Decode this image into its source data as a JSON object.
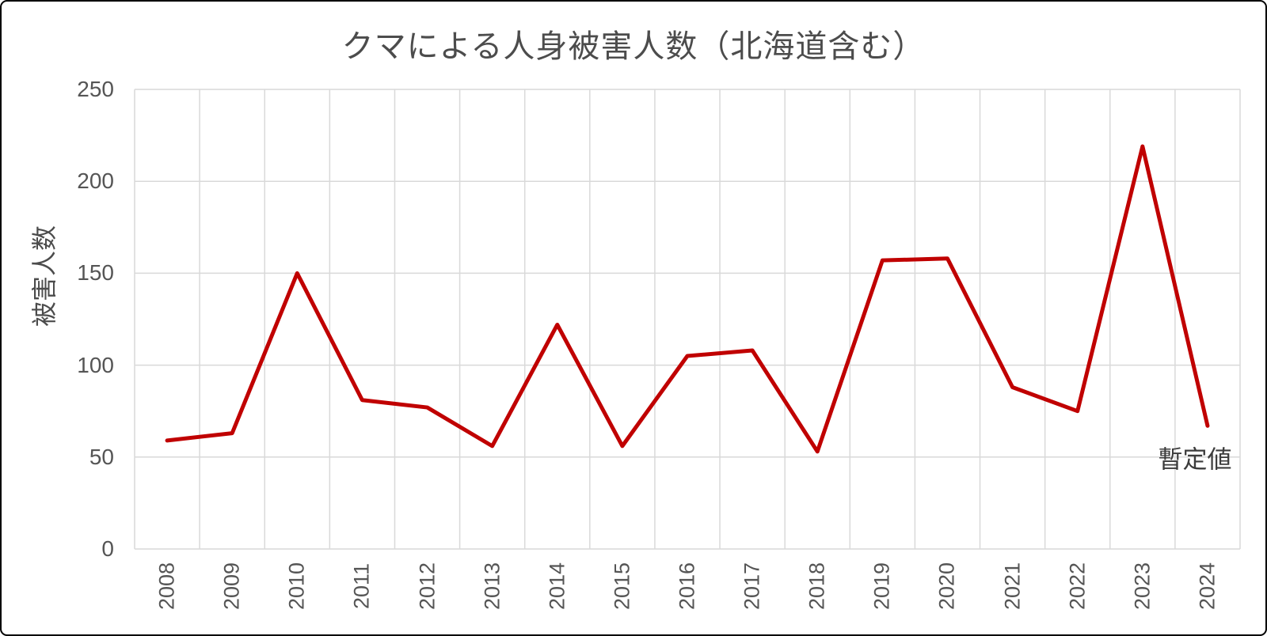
{
  "chart_data": {
    "type": "line",
    "title": "クマによる人身被害人数（北海道含む）",
    "ylabel": "被害人数",
    "xlabel": "",
    "annotation": "暫定値",
    "categories": [
      "2008",
      "2009",
      "2010",
      "2011",
      "2012",
      "2013",
      "2014",
      "2015",
      "2016",
      "2017",
      "2018",
      "2019",
      "2020",
      "2021",
      "2022",
      "2023",
      "2024"
    ],
    "values": [
      59,
      63,
      150,
      81,
      77,
      56,
      122,
      56,
      105,
      108,
      53,
      157,
      158,
      88,
      75,
      219,
      67
    ],
    "ylim": [
      0,
      250
    ],
    "yticks": [
      0,
      50,
      100,
      150,
      200,
      250
    ],
    "grid": true,
    "legend": "none",
    "line_color": "#c00000",
    "grid_color": "#d9d9d9"
  }
}
